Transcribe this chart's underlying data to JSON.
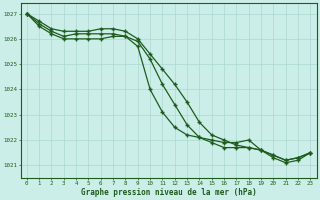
{
  "title": "Graphe pression niveau de la mer (hPa)",
  "bg_color": "#cceee8",
  "grid_color": "#aad8d0",
  "line_color": "#1e5c1e",
  "xlim": [
    -0.5,
    23.5
  ],
  "ylim": [
    1020.5,
    1027.4
  ],
  "yticks": [
    1021,
    1022,
    1023,
    1024,
    1025,
    1026,
    1027
  ],
  "xticks": [
    0,
    1,
    2,
    3,
    4,
    5,
    6,
    7,
    8,
    9,
    10,
    11,
    12,
    13,
    14,
    15,
    16,
    17,
    18,
    19,
    20,
    21,
    22,
    23
  ],
  "line1_x": [
    0,
    1,
    2,
    3,
    4,
    5,
    6,
    7,
    8,
    9,
    10,
    11,
    12,
    13,
    14,
    15,
    16,
    17,
    18,
    19,
    20,
    21,
    22,
    23
  ],
  "line1_y": [
    1027.0,
    1026.5,
    1026.2,
    1026.0,
    1026.0,
    1026.0,
    1026.0,
    1026.1,
    1026.1,
    1025.9,
    1025.2,
    1024.2,
    1023.4,
    1022.6,
    1022.1,
    1021.9,
    1021.7,
    1021.7,
    1021.7,
    1021.6,
    1021.4,
    1021.2,
    1021.3,
    1021.5
  ],
  "line2_x": [
    0,
    1,
    2,
    3,
    4,
    5,
    6,
    7,
    8,
    9,
    10,
    11,
    12,
    13,
    14,
    15,
    16,
    17,
    18,
    19,
    20,
    21,
    22,
    23
  ],
  "line2_y": [
    1027.0,
    1026.7,
    1026.4,
    1026.3,
    1026.3,
    1026.3,
    1026.4,
    1026.4,
    1026.3,
    1026.0,
    1025.4,
    1024.8,
    1024.2,
    1023.5,
    1022.7,
    1022.2,
    1022.0,
    1021.8,
    1021.7,
    1021.6,
    1021.4,
    1021.2,
    1021.3,
    1021.5
  ],
  "line3_x": [
    0,
    1,
    2,
    3,
    4,
    5,
    6,
    7,
    8,
    9,
    10,
    11,
    12,
    13,
    14,
    15,
    16,
    17,
    18,
    19,
    20,
    21,
    22,
    23
  ],
  "line3_y": [
    1027.0,
    1026.6,
    1026.3,
    1026.1,
    1026.2,
    1026.2,
    1026.2,
    1026.2,
    1026.1,
    1025.7,
    1024.0,
    1023.1,
    1022.5,
    1022.2,
    1022.1,
    1022.0,
    1021.9,
    1021.9,
    1022.0,
    1021.6,
    1021.3,
    1021.1,
    1021.2,
    1021.5
  ]
}
